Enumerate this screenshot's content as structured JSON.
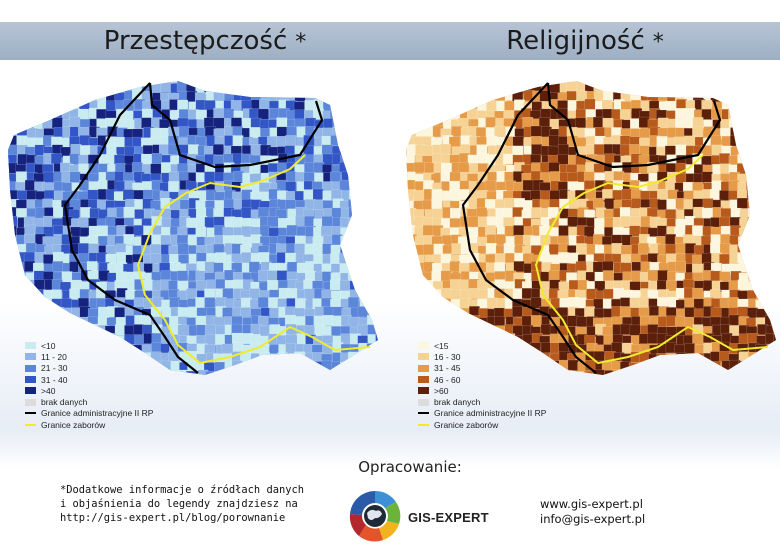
{
  "maps": {
    "left": {
      "title": "Przestępczość",
      "asterisk": "*",
      "legend": [
        {
          "label": "<10",
          "color": "#c9ecf0"
        },
        {
          "label": "11 - 20",
          "color": "#91b5e6"
        },
        {
          "label": "21 - 30",
          "color": "#5b86d9"
        },
        {
          "label": "31 - 40",
          "color": "#3256c6"
        },
        {
          "label": ">40",
          "color": "#15237e"
        },
        {
          "label": "brak danych",
          "color": "#dcdcdc"
        }
      ],
      "region_fill": "#6b93dc"
    },
    "right": {
      "title": "Religijność",
      "asterisk": "*",
      "legend": [
        {
          "label": "<15",
          "color": "#fdf6df"
        },
        {
          "label": "16 - 30",
          "color": "#f6d394"
        },
        {
          "label": "31 - 45",
          "color": "#e69b48"
        },
        {
          "label": "46 - 60",
          "color": "#b75a1c"
        },
        {
          "label": ">60",
          "color": "#5b1f0a"
        },
        {
          "label": "brak danych",
          "color": "#dcdcdc"
        }
      ],
      "region_fill": "#dc9240"
    }
  },
  "legend_lines": [
    {
      "label": "Granice administracyjne II RP",
      "color": "#000000"
    },
    {
      "label": "Granice zaborów",
      "color": "#f0ec2a"
    }
  ],
  "footer": {
    "footnote": [
      "*Dodatkowe informacje o źródłach danych",
      "i objaśnienia do legendy znajdziesz na",
      "http://gis-expert.pl/blog/porownanie"
    ],
    "prepared_by_label": "Opracowanie:",
    "logo_text": "GIS-EXPERT",
    "website": "www.gis-expert.pl",
    "email": "info@gis-expert.pl"
  }
}
